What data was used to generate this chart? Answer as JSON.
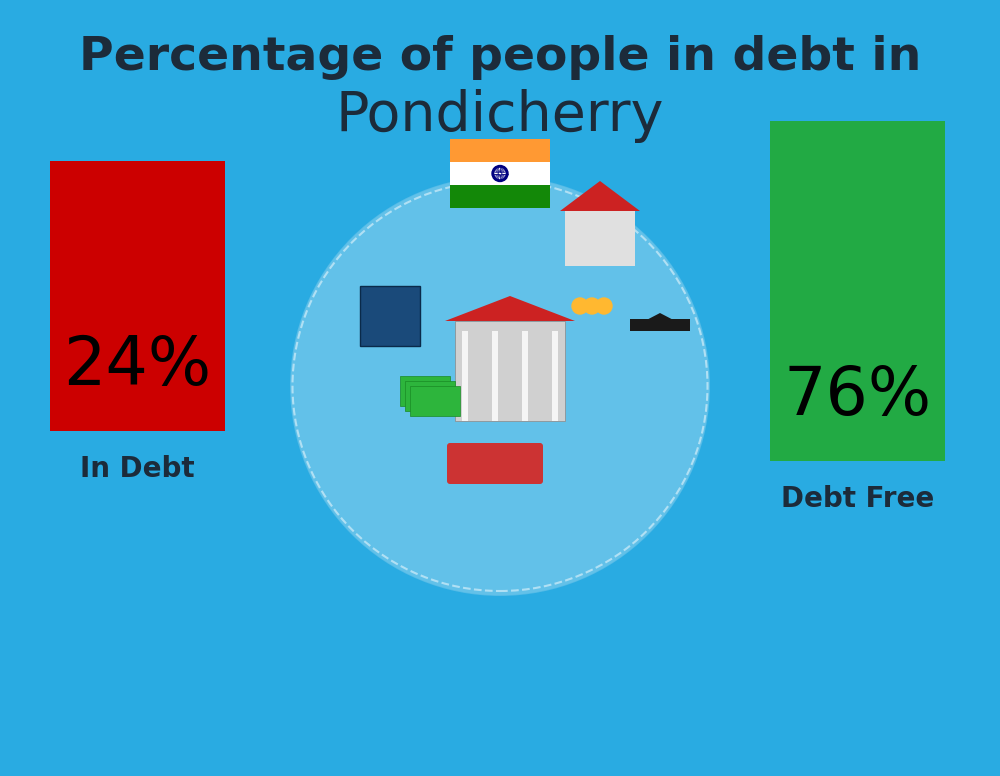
{
  "title_line1": "Percentage of people in debt in",
  "title_line2": "Pondicherry",
  "title_color": "#1C2B3A",
  "background_color": "#29ABE2",
  "bar1_label": "In Debt",
  "bar1_value": "24%",
  "bar1_color": "#CC0000",
  "bar2_label": "Debt Free",
  "bar2_value": "76%",
  "bar2_color": "#22AA44",
  "label_color": "#1C2B3A",
  "value_color": "#000000",
  "title_fontsize": 34,
  "subtitle_fontsize": 40,
  "value_fontsize": 48,
  "label_fontsize": 20,
  "flag_saffron": "#FF9933",
  "flag_white": "#FFFFFF",
  "flag_green": "#138808",
  "flag_navy": "#000080"
}
